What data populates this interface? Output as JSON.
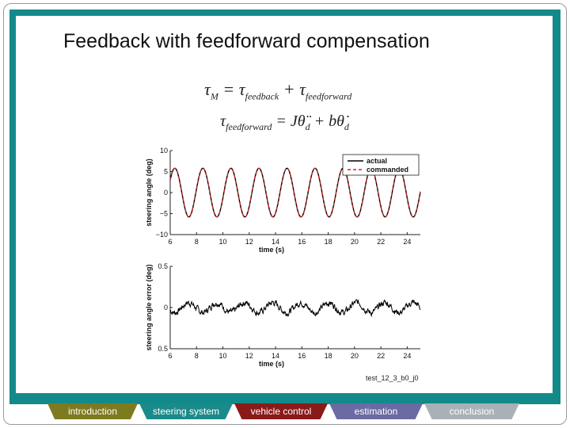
{
  "slide": {
    "title": "Feedback with feedforward compensation",
    "eq1": {
      "lhs": "τ",
      "lhs_sub": "M",
      "eq": " = ",
      "t1": "τ",
      "t1_sub": "feedback",
      "plus": " + ",
      "t2": "τ",
      "t2_sub": "feedforward"
    },
    "eq2": {
      "lhs": "τ",
      "lhs_sub": "feedforward",
      "rhs": " = Jθ̈",
      "rhs_sub1": "d",
      "mid": " + bθ̇",
      "rhs_sub2": "d"
    },
    "caption": "test_12_3_b0_j0"
  },
  "nav": {
    "tabs": [
      {
        "label": "introduction",
        "color": "#7e7a1f"
      },
      {
        "label": "steering system",
        "color": "#1b8a8a"
      },
      {
        "label": "vehicle control",
        "color": "#8a1a1a"
      },
      {
        "label": "estimation",
        "color": "#6b6aa3"
      },
      {
        "label": "conclusion",
        "color": "#a9b1b6"
      }
    ]
  },
  "chart_data": [
    {
      "type": "line",
      "xlabel": "time (s)",
      "ylabel": "steering angle (deg)",
      "xlim": [
        6,
        25
      ],
      "ylim": [
        -10,
        10
      ],
      "xticks": [
        6,
        8,
        10,
        12,
        14,
        16,
        18,
        20,
        22,
        24
      ],
      "yticks": [
        10,
        5,
        0,
        -5,
        -10
      ],
      "ytick_labels": [
        "10",
        "5",
        "0",
        "−5",
        "−10"
      ],
      "legend": {
        "placement": "top-right"
      },
      "series": [
        {
          "name": "actual",
          "color": "#000000",
          "style": "solid",
          "amplitude": 5.8,
          "frequency_hz": 0.5
        },
        {
          "name": "commanded",
          "color": "#d42020",
          "style": "dashed",
          "amplitude": 5.8,
          "frequency_hz": 0.5
        }
      ]
    },
    {
      "type": "line",
      "xlabel": "time (s)",
      "ylabel": "steering angle error (deg)",
      "xlim": [
        6,
        25
      ],
      "ylim": [
        -0.5,
        0.5
      ],
      "xticks": [
        6,
        8,
        10,
        12,
        14,
        16,
        18,
        20,
        22,
        24
      ],
      "yticks": [
        0.5,
        0,
        0.5
      ],
      "ytick_labels": [
        "0.5",
        "0",
        "0.5"
      ],
      "series": [
        {
          "name": "",
          "color": "#000000",
          "style": "solid",
          "amplitude": 0.06,
          "noise": 0.03
        }
      ]
    }
  ]
}
